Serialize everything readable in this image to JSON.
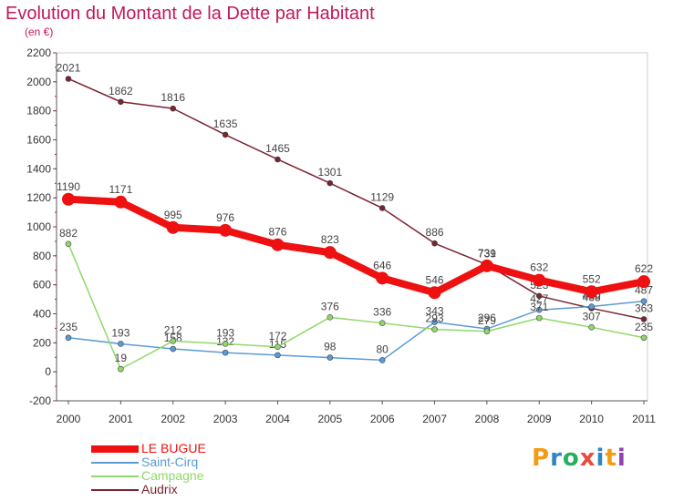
{
  "header": {
    "title": "Evolution du Montant de la Dette par Habitant",
    "subtitle": "(en €)"
  },
  "brand": {
    "letters": [
      "P",
      "r",
      "o",
      "x",
      "i",
      "t",
      "i"
    ],
    "colors": [
      "#f39c12",
      "#2e86c1",
      "#27ae60",
      "#e74c3c",
      "#2e86c1",
      "#f39c12",
      "#8e44ad"
    ]
  },
  "chart_data": {
    "type": "line",
    "x": [
      "2000",
      "2001",
      "2002",
      "2003",
      "2004",
      "2005",
      "2006",
      "2007",
      "2008",
      "2009",
      "2010",
      "2011"
    ],
    "ylim": [
      -200,
      2200
    ],
    "yticks": [
      -200,
      0,
      200,
      400,
      600,
      800,
      1000,
      1200,
      1400,
      1600,
      1800,
      2000,
      2200
    ],
    "grid": false,
    "legend_position": "bottom-left",
    "series": [
      {
        "name": "Audrix",
        "color": "#7a2430",
        "values": [
          2021,
          1862,
          1816,
          1635,
          1465,
          1301,
          1129,
          886,
          739,
          523,
          438,
          363
        ]
      },
      {
        "name": "Saint-Cirq",
        "color": "#5b9bd5",
        "values": [
          235,
          193,
          158,
          132,
          115,
          98,
          80,
          343,
          296,
          427,
          450,
          487
        ]
      },
      {
        "name": "Campagne",
        "color": "#90d86b",
        "values": [
          882,
          19,
          212,
          193,
          172,
          376,
          336,
          293,
          279,
          371,
          307,
          235
        ]
      },
      {
        "name": "LE BUGUE",
        "color": "#ee1111",
        "values": [
          1190,
          1171,
          995,
          976,
          876,
          823,
          646,
          546,
          731,
          632,
          552,
          622
        ]
      }
    ],
    "legend": [
      {
        "name": "LE BUGUE",
        "color": "#ee1111"
      },
      {
        "name": "Saint-Cirq",
        "color": "#5b9bd5"
      },
      {
        "name": "Campagne",
        "color": "#90d86b"
      },
      {
        "name": "Audrix",
        "color": "#7a2430"
      }
    ]
  }
}
